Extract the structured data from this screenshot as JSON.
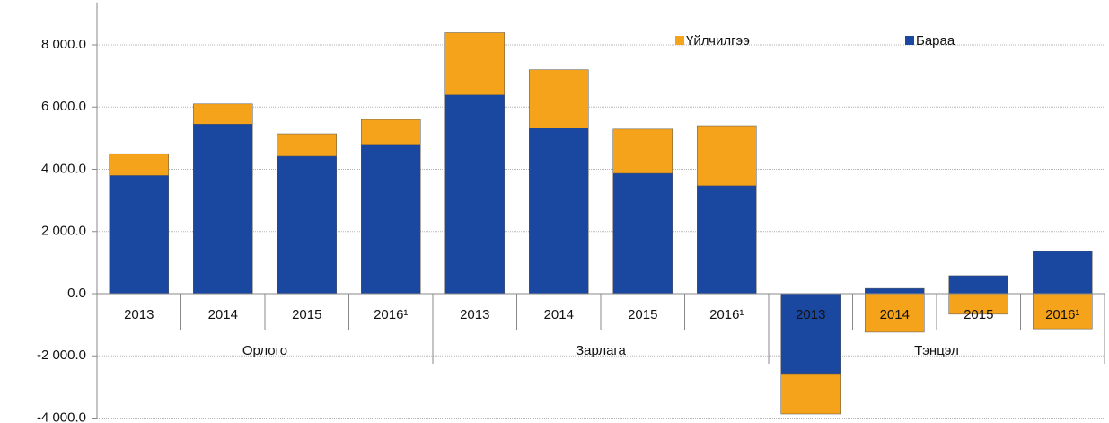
{
  "chart_data": {
    "type": "stacked_bar",
    "groups": [
      "Орлого",
      "Зарлага",
      "Тэнцэл"
    ],
    "categories": [
      "2013",
      "2014",
      "2015",
      "2016¹",
      "2013",
      "2014",
      "2015",
      "2016¹",
      "2013",
      "2014",
      "2015",
      "2016¹"
    ],
    "series": [
      {
        "name": "Үйлчилгээ",
        "color": "#f5a31a",
        "values": [
          700,
          650,
          720,
          800,
          2000,
          1880,
          1420,
          1930,
          -1300,
          -1240,
          -660,
          -1130
        ]
      },
      {
        "name": "Бараа",
        "color": "#1a47a0",
        "values": [
          3800,
          5450,
          4420,
          4800,
          6390,
          5320,
          3870,
          3470,
          -2570,
          170,
          580,
          1360
        ]
      }
    ],
    "ylim": [
      -4000,
      8500
    ],
    "yticks": [
      {
        "value": -4000,
        "label": "-4 000.0"
      },
      {
        "value": -2000,
        "label": "-2 000.0"
      },
      {
        "value": 0,
        "label": "0.0"
      },
      {
        "value": 2000,
        "label": "2 000.0"
      },
      {
        "value": 4000,
        "label": "4 000.0"
      },
      {
        "value": 6000,
        "label": "6 000.0"
      },
      {
        "value": 8000,
        "label": "8 000.0"
      }
    ],
    "grid": true
  }
}
